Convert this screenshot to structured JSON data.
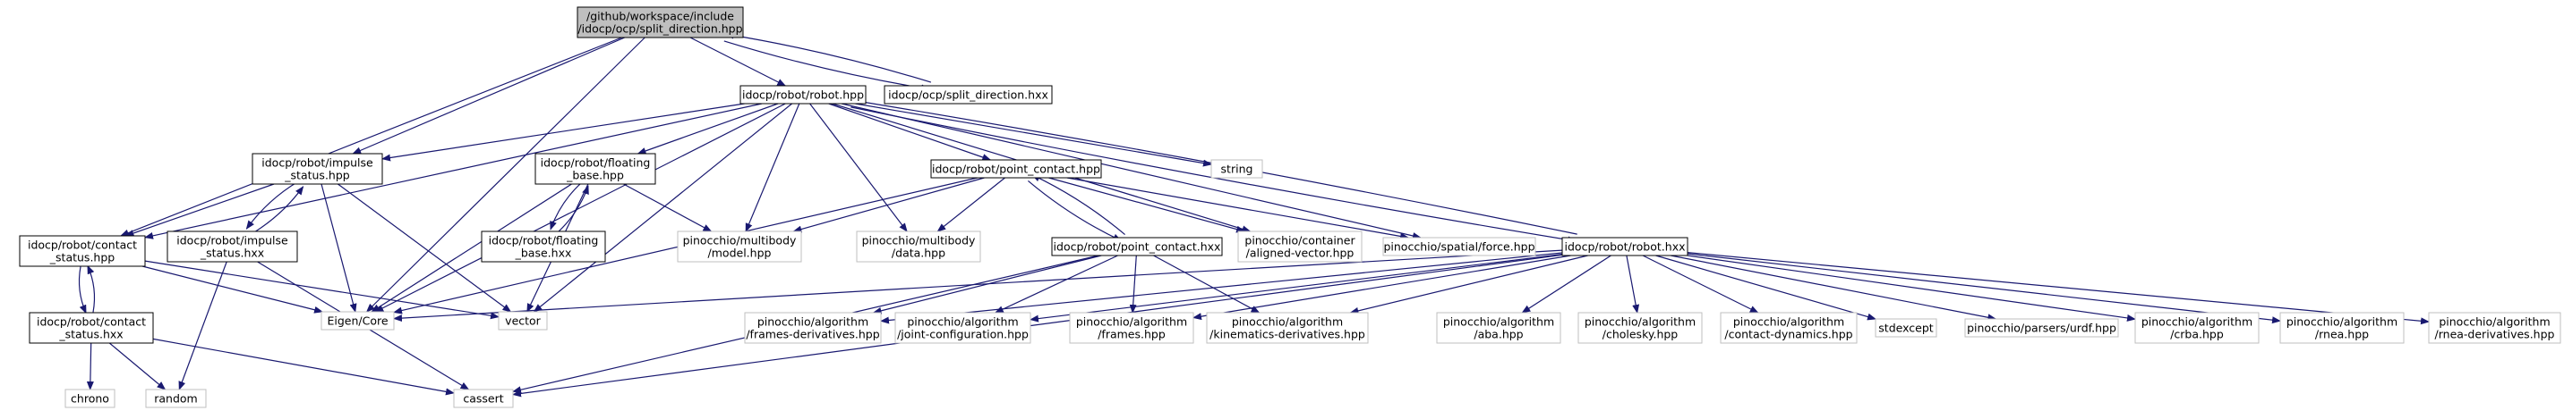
{
  "graph": {
    "colors": {
      "edge": "#191970",
      "node_border": "#000000",
      "external_border": "#bfbfbf",
      "root_fill": "#bfbfbf",
      "node_fill": "#ffffff",
      "text": "#000000"
    },
    "nodes": [
      {
        "id": "split_direction_hpp",
        "lines": [
          "/github/workspace/include",
          "/idocp/ocp/split_direction.hpp"
        ],
        "kind": "root"
      },
      {
        "id": "split_direction_hxx",
        "lines": [
          "idocp/ocp/split_direction.hxx"
        ],
        "kind": "local"
      },
      {
        "id": "robot_hpp",
        "lines": [
          "idocp/robot/robot.hpp"
        ],
        "kind": "local"
      },
      {
        "id": "impulse_status_hpp",
        "lines": [
          "idocp/robot/impulse",
          "_status.hpp"
        ],
        "kind": "local"
      },
      {
        "id": "floating_base_hpp",
        "lines": [
          "idocp/robot/floating",
          "_base.hpp"
        ],
        "kind": "local"
      },
      {
        "id": "point_contact_hpp",
        "lines": [
          "idocp/robot/point_contact.hpp"
        ],
        "kind": "local"
      },
      {
        "id": "string",
        "lines": [
          "string"
        ],
        "kind": "external"
      },
      {
        "id": "contact_status_hpp",
        "lines": [
          "idocp/robot/contact",
          "_status.hpp"
        ],
        "kind": "local"
      },
      {
        "id": "impulse_status_hxx",
        "lines": [
          "idocp/robot/impulse",
          "_status.hxx"
        ],
        "kind": "local"
      },
      {
        "id": "floating_base_hxx",
        "lines": [
          "idocp/robot/floating",
          "_base.hxx"
        ],
        "kind": "local"
      },
      {
        "id": "multibody_model",
        "lines": [
          "pinocchio/multibody",
          "/model.hpp"
        ],
        "kind": "external"
      },
      {
        "id": "multibody_data",
        "lines": [
          "pinocchio/multibody",
          "/data.hpp"
        ],
        "kind": "external"
      },
      {
        "id": "point_contact_hxx",
        "lines": [
          "idocp/robot/point_contact.hxx"
        ],
        "kind": "local"
      },
      {
        "id": "aligned_vector",
        "lines": [
          "pinocchio/container",
          "/aligned-vector.hpp"
        ],
        "kind": "external"
      },
      {
        "id": "spatial_force",
        "lines": [
          "pinocchio/spatial/force.hpp"
        ],
        "kind": "external"
      },
      {
        "id": "robot_hxx",
        "lines": [
          "idocp/robot/robot.hxx"
        ],
        "kind": "local"
      },
      {
        "id": "contact_status_hxx",
        "lines": [
          "idocp/robot/contact",
          "_status.hxx"
        ],
        "kind": "local"
      },
      {
        "id": "eigen_core",
        "lines": [
          "Eigen/Core"
        ],
        "kind": "external"
      },
      {
        "id": "vector",
        "lines": [
          "vector"
        ],
        "kind": "external"
      },
      {
        "id": "frames_derivatives",
        "lines": [
          "pinocchio/algorithm",
          "/frames-derivatives.hpp"
        ],
        "kind": "external"
      },
      {
        "id": "joint_configuration",
        "lines": [
          "pinocchio/algorithm",
          "/joint-configuration.hpp"
        ],
        "kind": "external"
      },
      {
        "id": "frames",
        "lines": [
          "pinocchio/algorithm",
          "/frames.hpp"
        ],
        "kind": "external"
      },
      {
        "id": "kinematics_derivatives",
        "lines": [
          "pinocchio/algorithm",
          "/kinematics-derivatives.hpp"
        ],
        "kind": "external"
      },
      {
        "id": "aba",
        "lines": [
          "pinocchio/algorithm",
          "/aba.hpp"
        ],
        "kind": "external"
      },
      {
        "id": "cholesky",
        "lines": [
          "pinocchio/algorithm",
          "/cholesky.hpp"
        ],
        "kind": "external"
      },
      {
        "id": "contact_dynamics",
        "lines": [
          "pinocchio/algorithm",
          "/contact-dynamics.hpp"
        ],
        "kind": "external"
      },
      {
        "id": "stdexcept",
        "lines": [
          "stdexcept"
        ],
        "kind": "external"
      },
      {
        "id": "urdf",
        "lines": [
          "pinocchio/parsers/urdf.hpp"
        ],
        "kind": "external"
      },
      {
        "id": "crba",
        "lines": [
          "pinocchio/algorithm",
          "/crba.hpp"
        ],
        "kind": "external"
      },
      {
        "id": "rnea",
        "lines": [
          "pinocchio/algorithm",
          "/rnea.hpp"
        ],
        "kind": "external"
      },
      {
        "id": "rnea_derivatives",
        "lines": [
          "pinocchio/algorithm",
          "/rnea-derivatives.hpp"
        ],
        "kind": "external"
      },
      {
        "id": "chrono",
        "lines": [
          "chrono"
        ],
        "kind": "external"
      },
      {
        "id": "random",
        "lines": [
          "random"
        ],
        "kind": "external"
      },
      {
        "id": "cassert",
        "lines": [
          "cassert"
        ],
        "kind": "external"
      }
    ],
    "edges": [
      [
        "split_direction_hpp",
        "robot_hpp"
      ],
      [
        "split_direction_hpp",
        "split_direction_hxx"
      ],
      [
        "split_direction_hpp",
        "impulse_status_hpp"
      ],
      [
        "split_direction_hpp",
        "contact_status_hpp"
      ],
      [
        "split_direction_hpp",
        "eigen_core"
      ],
      [
        "split_direction_hxx",
        "split_direction_hpp"
      ],
      [
        "robot_hpp",
        "impulse_status_hpp"
      ],
      [
        "robot_hpp",
        "floating_base_hpp"
      ],
      [
        "robot_hpp",
        "point_contact_hpp"
      ],
      [
        "robot_hpp",
        "string"
      ],
      [
        "robot_hpp",
        "contact_status_hpp"
      ],
      [
        "robot_hpp",
        "multibody_model"
      ],
      [
        "robot_hpp",
        "multibody_data"
      ],
      [
        "robot_hpp",
        "aligned_vector"
      ],
      [
        "robot_hpp",
        "spatial_force"
      ],
      [
        "robot_hpp",
        "robot_hxx"
      ],
      [
        "robot_hpp",
        "eigen_core"
      ],
      [
        "robot_hpp",
        "vector"
      ],
      [
        "impulse_status_hpp",
        "contact_status_hpp"
      ],
      [
        "impulse_status_hpp",
        "impulse_status_hxx"
      ],
      [
        "impulse_status_hpp",
        "eigen_core"
      ],
      [
        "impulse_status_hpp",
        "vector"
      ],
      [
        "impulse_status_hxx",
        "impulse_status_hpp"
      ],
      [
        "impulse_status_hxx",
        "random"
      ],
      [
        "impulse_status_hxx",
        "cassert"
      ],
      [
        "floating_base_hpp",
        "floating_base_hxx"
      ],
      [
        "floating_base_hpp",
        "multibody_model"
      ],
      [
        "floating_base_hpp",
        "eigen_core"
      ],
      [
        "floating_base_hpp",
        "vector"
      ],
      [
        "floating_base_hxx",
        "floating_base_hpp"
      ],
      [
        "point_contact_hpp",
        "point_contact_hxx"
      ],
      [
        "point_contact_hpp",
        "multibody_model"
      ],
      [
        "point_contact_hpp",
        "multibody_data"
      ],
      [
        "point_contact_hpp",
        "aligned_vector"
      ],
      [
        "point_contact_hpp",
        "spatial_force"
      ],
      [
        "point_contact_hpp",
        "eigen_core"
      ],
      [
        "point_contact_hxx",
        "point_contact_hpp"
      ],
      [
        "point_contact_hxx",
        "frames_derivatives"
      ],
      [
        "point_contact_hxx",
        "joint_configuration"
      ],
      [
        "point_contact_hxx",
        "frames"
      ],
      [
        "point_contact_hxx",
        "kinematics_derivatives"
      ],
      [
        "point_contact_hxx",
        "cassert"
      ],
      [
        "contact_status_hpp",
        "contact_status_hxx"
      ],
      [
        "contact_status_hpp",
        "eigen_core"
      ],
      [
        "contact_status_hpp",
        "vector"
      ],
      [
        "contact_status_hxx",
        "contact_status_hpp"
      ],
      [
        "contact_status_hxx",
        "chrono"
      ],
      [
        "contact_status_hxx",
        "random"
      ],
      [
        "contact_status_hxx",
        "cassert"
      ],
      [
        "robot_hxx",
        "robot_hpp"
      ],
      [
        "robot_hxx",
        "eigen_core"
      ],
      [
        "robot_hxx",
        "frames_derivatives"
      ],
      [
        "robot_hxx",
        "joint_configuration"
      ],
      [
        "robot_hxx",
        "frames"
      ],
      [
        "robot_hxx",
        "kinematics_derivatives"
      ],
      [
        "robot_hxx",
        "aba"
      ],
      [
        "robot_hxx",
        "cholesky"
      ],
      [
        "robot_hxx",
        "contact_dynamics"
      ],
      [
        "robot_hxx",
        "stdexcept"
      ],
      [
        "robot_hxx",
        "urdf"
      ],
      [
        "robot_hxx",
        "crba"
      ],
      [
        "robot_hxx",
        "rnea"
      ],
      [
        "robot_hxx",
        "rnea_derivatives"
      ],
      [
        "robot_hxx",
        "cassert"
      ]
    ]
  }
}
